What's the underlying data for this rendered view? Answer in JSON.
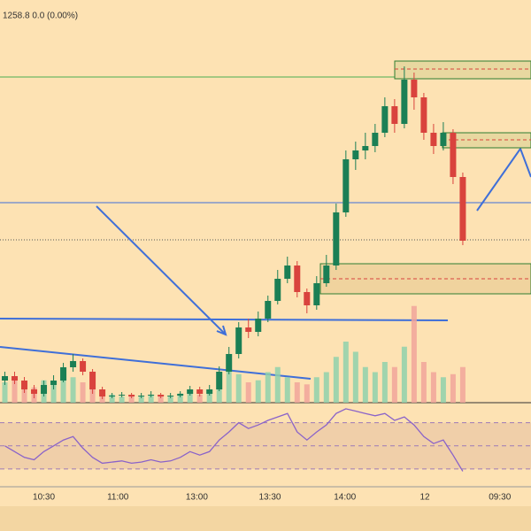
{
  "chart_data": {
    "type": "candlestick",
    "title": "1258.8  0.0 (0.00%)",
    "up_color": "#1b7f55",
    "down_color": "#d9433d",
    "open": [
      1243,
      1243.5,
      1243,
      1242,
      1241.5,
      1242.5,
      1243,
      1244.5,
      1245.2,
      1244,
      1242,
      1241.2,
      1241.3,
      1241.4,
      1241.2,
      1241.3,
      1241.4,
      1241.2,
      1241.3,
      1241.5,
      1242,
      1241.5,
      1242,
      1244,
      1246,
      1249,
      1248.5,
      1250,
      1252,
      1254.5,
      1256,
      1253,
      1251.5,
      1254,
      1256,
      1262,
      1268,
      1269,
      1269.5,
      1271,
      1274,
      1272,
      1277,
      1275,
      1271,
      1269.5,
      1271,
      1266
    ],
    "high": [
      1244,
      1244,
      1243.4,
      1242.5,
      1243,
      1243.6,
      1245,
      1246,
      1245.5,
      1244.3,
      1242.3,
      1241.6,
      1241.7,
      1241.6,
      1241.6,
      1241.8,
      1241.6,
      1241.6,
      1241.8,
      1242.4,
      1242.3,
      1242.5,
      1244.6,
      1246.8,
      1249.6,
      1250,
      1250.8,
      1252.6,
      1255.5,
      1257,
      1256.5,
      1253.4,
      1254.8,
      1257.2,
      1263,
      1269,
      1270,
      1271,
      1272,
      1275,
      1274.8,
      1278.5,
      1277.8,
      1275.5,
      1272,
      1272.2,
      1271.4,
      1266.5
    ],
    "low": [
      1242.5,
      1242.6,
      1241.6,
      1241,
      1241.2,
      1242,
      1242.8,
      1244,
      1243.6,
      1241.5,
      1240.9,
      1241,
      1241.1,
      1241,
      1241,
      1241.1,
      1241,
      1241,
      1241.1,
      1241.3,
      1241.2,
      1241.3,
      1241.8,
      1243.7,
      1245.5,
      1247.8,
      1248,
      1249.6,
      1251.6,
      1254,
      1252.4,
      1250.6,
      1251,
      1253.6,
      1255.5,
      1261.5,
      1266.8,
      1268,
      1268.8,
      1270.5,
      1271,
      1271.5,
      1273.6,
      1270.2,
      1268.6,
      1269,
      1265.2,
      1258.3
    ],
    "close": [
      1243.5,
      1243,
      1242,
      1241.5,
      1242.5,
      1243,
      1244.5,
      1245.2,
      1244,
      1242,
      1241.2,
      1241.3,
      1241.4,
      1241.2,
      1241.3,
      1241.4,
      1241.2,
      1241.3,
      1241.5,
      1242,
      1241.5,
      1242,
      1244,
      1246,
      1249,
      1248.5,
      1250,
      1252,
      1254.5,
      1256,
      1253,
      1251.5,
      1254,
      1256,
      1262,
      1268,
      1269,
      1269.5,
      1271,
      1274,
      1272,
      1277,
      1275,
      1271,
      1269.5,
      1271,
      1266,
      1258.8
    ],
    "ylim": [
      1240.5,
      1286
    ],
    "xlim": [
      -0.5,
      54
    ],
    "xticks": [
      {
        "value": 4,
        "label": "10:30"
      },
      {
        "value": 11.6,
        "label": "11:00"
      },
      {
        "value": 19.7,
        "label": "13:00"
      },
      {
        "value": 27.2,
        "label": "13:30"
      },
      {
        "value": 34.9,
        "label": "14:00"
      },
      {
        "value": 43.1,
        "label": "12"
      },
      {
        "value": 50.8,
        "label": "09:30"
      }
    ],
    "volume": {
      "values": [
        20,
        25,
        18,
        15,
        22,
        18,
        30,
        25,
        20,
        15,
        10,
        8,
        6,
        7,
        6,
        8,
        7,
        6,
        9,
        10,
        8,
        12,
        25,
        35,
        28,
        20,
        22,
        30,
        35,
        25,
        20,
        18,
        25,
        30,
        45,
        60,
        50,
        35,
        30,
        40,
        35,
        55,
        95,
        40,
        30,
        25,
        28,
        35
      ],
      "ylim": [
        0,
        100
      ]
    },
    "rsi": {
      "values": [
        50,
        45,
        40,
        38,
        45,
        50,
        55,
        58,
        48,
        40,
        35,
        36,
        37,
        35,
        36,
        38,
        36,
        37,
        40,
        45,
        42,
        45,
        55,
        62,
        70,
        65,
        68,
        72,
        75,
        78,
        62,
        55,
        62,
        68,
        78,
        82,
        80,
        78,
        76,
        78,
        72,
        75,
        68,
        58,
        52,
        55,
        42,
        28
      ],
      "ylim": [
        20,
        85
      ],
      "yticks": [
        30,
        50,
        70
      ],
      "color": "#8a63c9"
    }
  }
}
